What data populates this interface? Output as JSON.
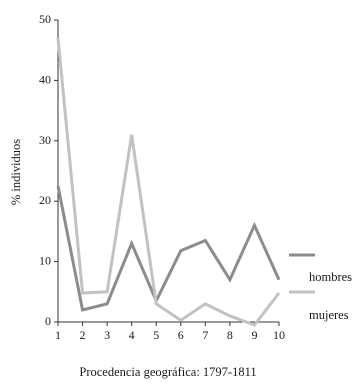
{
  "chart_data": {
    "type": "line",
    "xlabel": "Procedencia geográfica: 1797-1811",
    "ylabel": "% individuos",
    "x": [
      1,
      2,
      3,
      4,
      5,
      6,
      7,
      8,
      9,
      10
    ],
    "ylim": [
      0,
      50
    ],
    "xlim": [
      1,
      10
    ],
    "yticks": [
      0,
      10,
      20,
      30,
      40,
      50
    ],
    "xticks": [
      1,
      2,
      3,
      4,
      5,
      6,
      7,
      8,
      9,
      10
    ],
    "grid": false,
    "legend_position": "right",
    "series": [
      {
        "name": "hombres",
        "color": "#8c8c8c",
        "values": [
          22.5,
          2,
          3,
          13,
          3.5,
          11.8,
          13.5,
          7,
          16,
          7
        ]
      },
      {
        "name": "mujeres",
        "color": "#c2c2c2",
        "values": [
          47,
          4.8,
          5,
          31,
          3,
          0.3,
          3,
          1,
          -0.5,
          4.8
        ]
      }
    ]
  }
}
